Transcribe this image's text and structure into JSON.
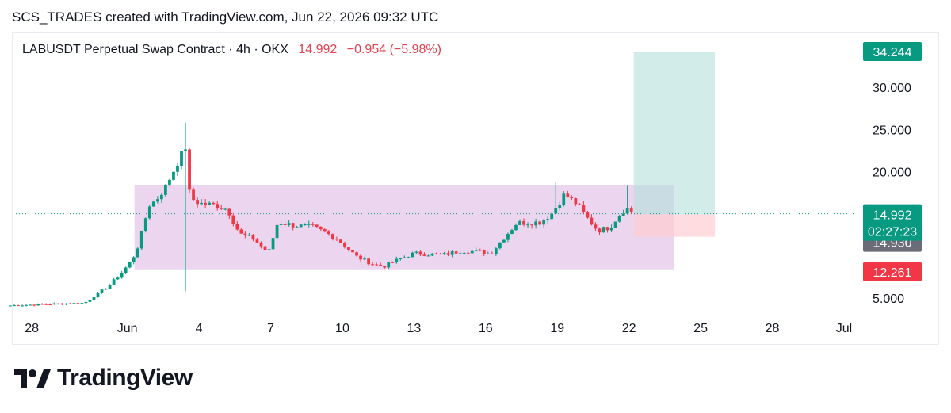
{
  "header": {
    "caption": "SCS_TRADES created with TradingView.com, Jun 22, 2026 09:32 UTC"
  },
  "legend": {
    "symbol": "LABUSDT Perpetual Swap Contract",
    "interval": "4h",
    "exchange": "OKX",
    "price": "14.992",
    "change": "−0.954 (−5.98%)"
  },
  "badges": {
    "target": "34.244",
    "last_price": "14.992",
    "countdown": "02:27:23",
    "entry": "14.930",
    "stop": "12.261"
  },
  "brand": {
    "name": "TradingView"
  },
  "colors": {
    "up": "#089981",
    "down": "#f23645",
    "range_box": "#e1bee7",
    "target_zone": "#b2dfdb",
    "stop_zone": "#ffcdd2",
    "badge_green": "#089981",
    "badge_gray": "#6a6d78",
    "badge_red": "#f23645"
  },
  "chart_data": {
    "type": "candlestick",
    "symbol": "LABUSDT Perpetual Swap Contract",
    "interval": "4h",
    "exchange": "OKX",
    "ylim": [
      3.2,
      36.5
    ],
    "yticks": [
      5,
      20,
      25,
      30
    ],
    "ytick_labels": [
      "5.000",
      "20.000",
      "25.000",
      "30.000"
    ],
    "x_axis": {
      "unit": "days from May 28",
      "range": [
        -0.8,
        34.5
      ],
      "ticks": [
        {
          "label": "28",
          "day": 0
        },
        {
          "label": "Jun",
          "day": 4
        },
        {
          "label": "4",
          "day": 7
        },
        {
          "label": "7",
          "day": 10
        },
        {
          "label": "10",
          "day": 13
        },
        {
          "label": "13",
          "day": 16
        },
        {
          "label": "16",
          "day": 19
        },
        {
          "label": "19",
          "day": 22
        },
        {
          "label": "22",
          "day": 25
        },
        {
          "label": "25",
          "day": 28
        },
        {
          "label": "28",
          "day": 31
        },
        {
          "label": "Jul",
          "day": 34
        }
      ]
    },
    "keypoints": [
      [
        -0.9,
        4.1
      ],
      [
        1.0,
        4.3
      ],
      [
        2.2,
        4.4
      ],
      [
        3.2,
        6.4
      ],
      [
        3.7,
        7.8
      ],
      [
        4.2,
        9.5
      ],
      [
        4.5,
        11.5
      ],
      [
        4.9,
        16.0
      ],
      [
        5.2,
        16.6
      ],
      [
        5.6,
        18.2
      ],
      [
        6.0,
        20.5
      ],
      [
        6.5,
        23.3
      ],
      [
        6.5,
        18.0
      ],
      [
        6.8,
        16.5
      ],
      [
        7.1,
        16.2
      ],
      [
        7.7,
        16.0
      ],
      [
        8.2,
        15.5
      ],
      [
        8.7,
        12.6
      ],
      [
        9.3,
        12.0
      ],
      [
        9.9,
        10.3
      ],
      [
        10.3,
        14.0
      ],
      [
        11.0,
        13.6
      ],
      [
        11.8,
        13.4
      ],
      [
        12.7,
        12.2
      ],
      [
        13.6,
        9.9
      ],
      [
        14.2,
        9.1
      ],
      [
        14.7,
        8.7
      ],
      [
        15.3,
        9.5
      ],
      [
        16.0,
        10.3
      ],
      [
        17.2,
        10.1
      ],
      [
        18.0,
        10.6
      ],
      [
        18.8,
        10.5
      ],
      [
        19.2,
        10.2
      ],
      [
        19.6,
        11.6
      ],
      [
        20.3,
        13.9
      ],
      [
        21.3,
        14.0
      ],
      [
        21.8,
        15.1
      ],
      [
        22.3,
        17.3
      ],
      [
        22.8,
        16.2
      ],
      [
        23.3,
        14.3
      ],
      [
        23.7,
        13.0
      ],
      [
        24.2,
        13.4
      ],
      [
        24.7,
        15.3
      ],
      [
        25.0,
        15.6
      ],
      [
        25.2,
        14.99
      ]
    ],
    "series": [
      {
        "kind": "rectangle",
        "day_from": 4.3,
        "day_to": 26.9,
        "y_from": 8.4,
        "y_to": 18.4
      },
      {
        "kind": "long_position",
        "day_from": 25.2,
        "day_to": 28.6,
        "entry": 14.93,
        "target": 34.244,
        "stop": 12.261
      },
      {
        "kind": "price_line",
        "value": 14.992
      }
    ]
  }
}
